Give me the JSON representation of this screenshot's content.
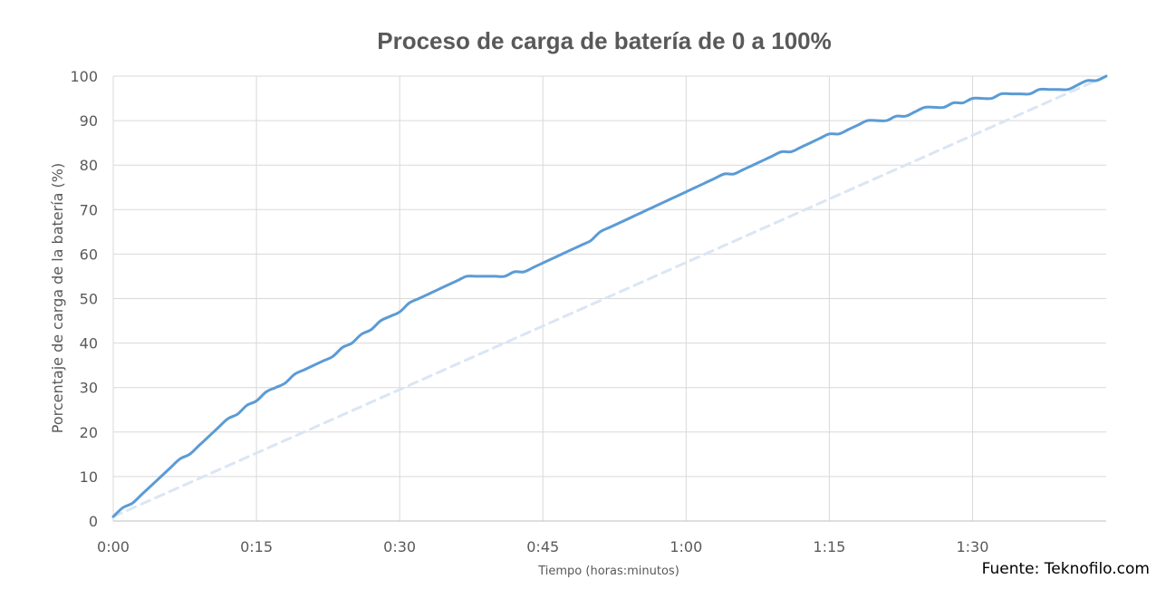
{
  "chart_data": {
    "type": "line",
    "title": "Proceso de carga de batería de 0 a 100%",
    "xlabel": "Tiempo (horas:minutos)",
    "ylabel": "Porcentaje de carga de la batería (%)",
    "x_tick_labels": [
      "0:00",
      "0:15",
      "0:30",
      "0:45",
      "1:00",
      "1:15",
      "1:30"
    ],
    "x_tick_values_min": [
      0,
      15,
      30,
      45,
      60,
      75,
      90
    ],
    "xlim_min": [
      0,
      104
    ],
    "ylim": [
      0,
      100
    ],
    "y_ticks": [
      0,
      10,
      20,
      30,
      40,
      50,
      60,
      70,
      80,
      90,
      100
    ],
    "grid": true,
    "legend": "none",
    "series": [
      {
        "style": "solid",
        "color": "#5b9bd5",
        "x_min": [
          0,
          1,
          2,
          3,
          4,
          5,
          6,
          7,
          8,
          9,
          10,
          11,
          12,
          13,
          14,
          15,
          16,
          17,
          18,
          19,
          20,
          21,
          22,
          23,
          24,
          25,
          26,
          27,
          28,
          29,
          30,
          31,
          32,
          33,
          34,
          35,
          36,
          37,
          38,
          39,
          40,
          41,
          42,
          43,
          44,
          45,
          46,
          47,
          48,
          49,
          50,
          51,
          52,
          53,
          54,
          55,
          56,
          57,
          58,
          59,
          60,
          61,
          62,
          63,
          64,
          65,
          66,
          67,
          68,
          69,
          70,
          71,
          72,
          73,
          74,
          75,
          76,
          77,
          78,
          79,
          80,
          81,
          82,
          83,
          84,
          85,
          86,
          87,
          88,
          89,
          90,
          91,
          92,
          93,
          94,
          95,
          96,
          97,
          98,
          99,
          100,
          101,
          102,
          103,
          104
        ],
        "y": [
          1,
          3,
          4,
          6,
          8,
          10,
          12,
          14,
          15,
          17,
          19,
          21,
          23,
          24,
          26,
          27,
          29,
          30,
          31,
          33,
          34,
          35,
          36,
          37,
          39,
          40,
          42,
          43,
          45,
          46,
          47,
          49,
          50,
          51,
          52,
          53,
          54,
          55,
          55,
          55,
          55,
          55,
          56,
          56,
          57,
          58,
          59,
          60,
          61,
          62,
          63,
          65,
          66,
          67,
          68,
          69,
          70,
          71,
          72,
          73,
          74,
          75,
          76,
          77,
          78,
          78,
          79,
          80,
          81,
          82,
          83,
          83,
          84,
          85,
          86,
          87,
          87,
          88,
          89,
          90,
          90,
          90,
          91,
          91,
          92,
          93,
          93,
          93,
          94,
          94,
          95,
          95,
          95,
          96,
          96,
          96,
          96,
          97,
          97,
          97,
          97,
          98,
          99,
          99,
          100
        ]
      },
      {
        "style": "dashed",
        "color": "#dae6f4",
        "x_min": [
          0,
          104
        ],
        "y": [
          1,
          100
        ]
      }
    ]
  },
  "source_text": "Fuente: Teknofilo.com"
}
